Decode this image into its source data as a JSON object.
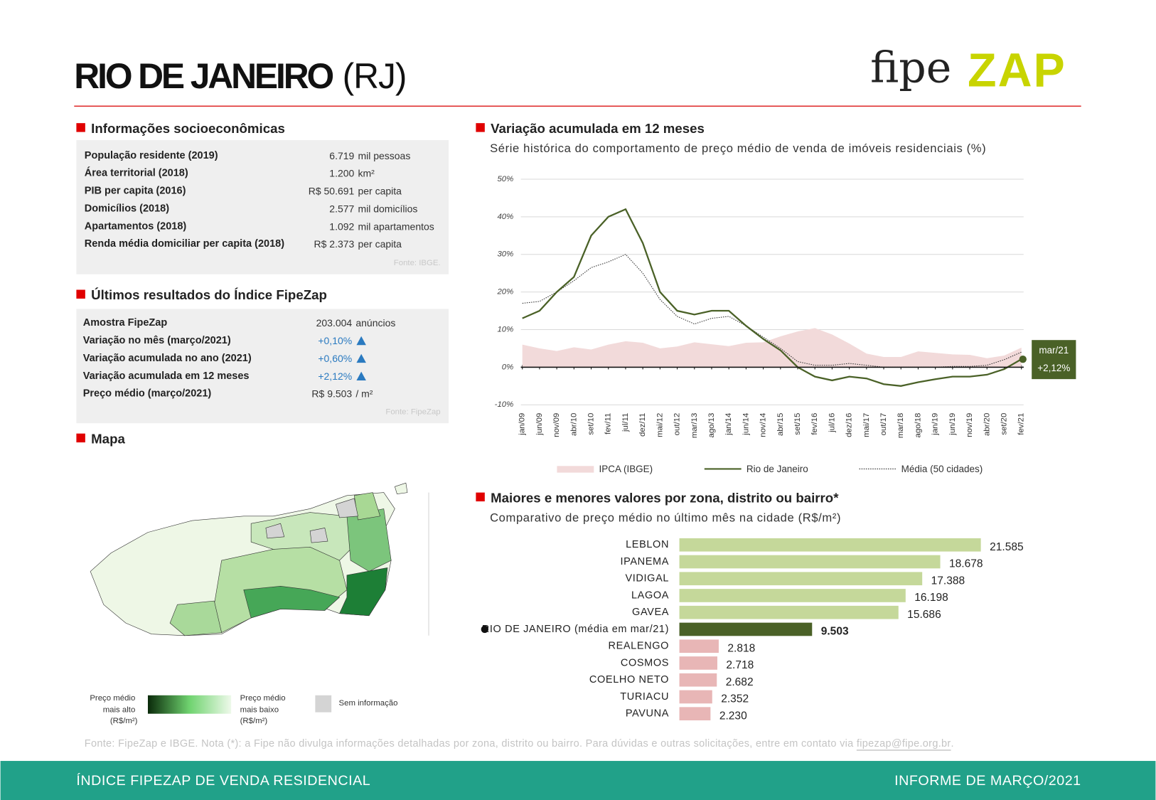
{
  "header": {
    "title": "RIO DE JANEIRO",
    "state": "(RJ)",
    "logo": [
      "fipe",
      "ZAP"
    ]
  },
  "socioeconomic": {
    "heading": "Informações socioeconômicas",
    "rows": [
      {
        "label": "População residente (2019)",
        "value": "6.719",
        "unit": "mil pessoas"
      },
      {
        "label": "Área territorial (2018)",
        "value": "1.200",
        "unit": "km²"
      },
      {
        "label": "PIB per capita (2016)",
        "value": "R$ 50.691",
        "unit": "per capita"
      },
      {
        "label": "Domicílios (2018)",
        "value": "2.577",
        "unit": "mil domicílios"
      },
      {
        "label": "Apartamentos (2018)",
        "value": "1.092",
        "unit": "mil apartamentos"
      },
      {
        "label": "Renda média domiciliar per capita (2018)",
        "value": "R$ 2.373",
        "unit": "per capita"
      }
    ],
    "source": "Fonte: IBGE."
  },
  "index": {
    "heading": "Últimos resultados do Índice FipeZap",
    "rows": [
      {
        "label": "Amostra FipeZap",
        "value": "203.004",
        "unit": "anúncios"
      },
      {
        "label": "Variação no mês (março/2021)",
        "value": "+0,10%",
        "trend": "up"
      },
      {
        "label": "Variação acumulada no ano (2021)",
        "value": "+0,60%",
        "trend": "up"
      },
      {
        "label": "Variação acumulada em 12 meses",
        "value": "+2,12%",
        "trend": "up"
      },
      {
        "label": "Preço médio (março/2021)",
        "value": "R$ 9.503",
        "unit": "/ m²"
      }
    ],
    "source": "Fonte: FipeZap"
  },
  "map": {
    "heading": "Mapa",
    "legend": {
      "high": [
        "Preço médio",
        "mais alto",
        "(R$/m²)"
      ],
      "low": [
        "Preço médio",
        "mais baixo",
        "(R$/m²)"
      ],
      "none": "Sem informação"
    }
  },
  "chart_data": [
    {
      "type": "line",
      "title": "Variação acumulada em 12 meses",
      "subtitle": "Série histórica do comportamento de preço médio de venda de imóveis residenciais (%)",
      "categories": [
        "jan/09",
        "jun/09",
        "nov/09",
        "abr/10",
        "set/10",
        "fev/11",
        "jul/11",
        "dez/11",
        "mai/12",
        "out/12",
        "mar/13",
        "ago/13",
        "jan/14",
        "jun/14",
        "nov/14",
        "abr/15",
        "set/15",
        "fev/16",
        "jul/16",
        "dez/16",
        "mai/17",
        "out/17",
        "mar/18",
        "ago/18",
        "jan/19",
        "jun/19",
        "nov/19",
        "abr/20",
        "set/20",
        "fev/21"
      ],
      "series": [
        {
          "name": "IPCA (IBGE)",
          "style": "area",
          "color": "#f2dada",
          "values": [
            6,
            5,
            4.3,
            5.3,
            4.7,
            6,
            6.9,
            6.5,
            5,
            5.5,
            6.6,
            6.1,
            5.6,
            6.5,
            6.6,
            8.2,
            9.5,
            10.4,
            8.7,
            6.3,
            3.6,
            2.7,
            2.7,
            4.2,
            3.8,
            3.4,
            3.3,
            2.4,
            3.1,
            5.2
          ]
        },
        {
          "name": "Média (50 cidades)",
          "style": "dotted",
          "color": "#333333",
          "values": [
            17,
            17.5,
            20,
            23,
            26.5,
            28,
            30,
            25,
            18,
            13.5,
            11.5,
            13,
            13.5,
            11,
            8,
            5,
            1.5,
            0.5,
            0.5,
            1,
            0.5,
            0,
            0,
            0,
            0,
            0.2,
            0.2,
            0.5,
            2,
            4
          ]
        },
        {
          "name": "Rio de Janeiro",
          "style": "solid",
          "color": "#4a6127",
          "values": [
            13,
            15,
            20,
            24,
            35,
            40,
            42,
            33,
            20,
            15,
            14,
            15,
            15,
            11,
            7.5,
            4.5,
            0,
            -2.5,
            -3.5,
            -2.5,
            -3,
            -4.5,
            -5,
            -4,
            -3.2,
            -2.5,
            -2.5,
            -2,
            -0.5,
            2.12
          ]
        }
      ],
      "ylim": [
        -10,
        50
      ],
      "yticks": [
        {
          "value": -10,
          "label": "-10%"
        },
        {
          "value": 0,
          "label": "0%"
        },
        {
          "value": 10,
          "label": "10%"
        },
        {
          "value": 20,
          "label": "20%"
        },
        {
          "value": 30,
          "label": "30%"
        },
        {
          "value": 40,
          "label": "40%"
        },
        {
          "value": 50,
          "label": "50%"
        }
      ],
      "grid": true,
      "legend": "bottom",
      "annotation": {
        "label": "mar/21",
        "value_label": "+2,12%",
        "color": "#4a6127"
      }
    },
    {
      "type": "hbar",
      "title": "Maiores e menores valores por zona, distrito ou bairro*",
      "subtitle": "Comparativo de preço médio no último mês na cidade (R$/m²)",
      "categories": [
        "LEBLON",
        "IPANEMA",
        "VIDIGAL",
        "LAGOA",
        "GAVEA",
        "RIO DE JANEIRO (média em mar/21)",
        "REALENGO",
        "COSMOS",
        "COELHO NETO",
        "TURIACU",
        "PAVUNA"
      ],
      "values": [
        21585,
        18678,
        17388,
        16198,
        15686,
        9503,
        2818,
        2718,
        2682,
        2352,
        2230
      ],
      "value_labels": [
        "21.585",
        "18.678",
        "17.388",
        "16.198",
        "15.686",
        "9.503",
        "2.818",
        "2.718",
        "2.682",
        "2.352",
        "2.230"
      ],
      "colors": [
        "#c5d89a",
        "#c5d89a",
        "#c5d89a",
        "#c5d89a",
        "#c5d89a",
        "#4a6127",
        "#e8b6b6",
        "#e8b6b6",
        "#e8b6b6",
        "#e8b6b6",
        "#e8b6b6"
      ],
      "highlight": 5
    }
  ],
  "footer": {
    "note": "Fonte: FipeZap e IBGE. Nota (*): a Fipe não divulga informações detalhadas por zona, distrito ou bairro. Para dúvidas e outras solicitações, entre em contato via ",
    "email": "fipezap@fipe.org.br",
    "end": "."
  },
  "bottom": {
    "left": "ÍNDICE FIPEZAP DE VENDA RESIDENCIAL",
    "right": "INFORME DE MARÇO/2021"
  }
}
